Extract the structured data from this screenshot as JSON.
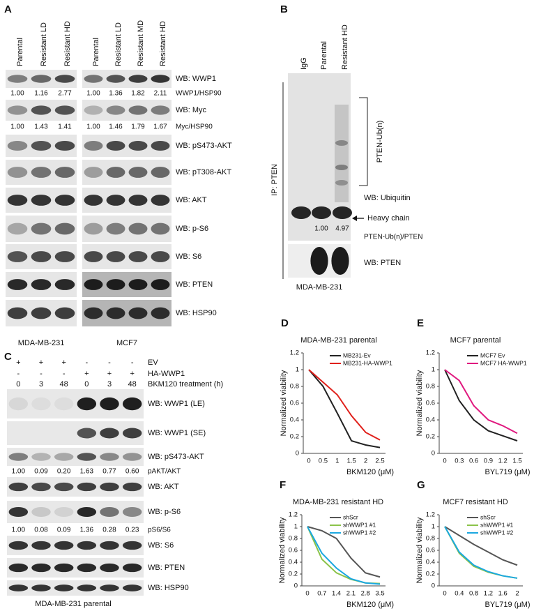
{
  "panel_a": {
    "label": "A",
    "groups": [
      {
        "cell_line": "MDA-MB-231",
        "lanes": [
          "Parental",
          "Resistant LD",
          "Resistant HD"
        ],
        "quant": [
          [
            "1.00",
            "1.16",
            "2.77"
          ],
          [
            "1.00",
            "1.43",
            "1.41"
          ]
        ]
      },
      {
        "cell_line": "MCF7",
        "lanes": [
          "Parental",
          "Resistant LD",
          "Resistant MD",
          "Resistant HD"
        ],
        "quant": [
          [
            "1.00",
            "1.36",
            "1.82",
            "2.11"
          ],
          [
            "1.00",
            "1.46",
            "1.79",
            "1.67"
          ]
        ]
      }
    ],
    "rows": [
      "WB: WWP1",
      "WB: Myc",
      "WB: pS473-AKT",
      "WB: pT308-AKT",
      "WB: AKT",
      "WB: p-S6",
      "WB: S6",
      "WB: PTEN",
      "WB: HSP90"
    ],
    "quant_labels": [
      "WWP1/HSP90",
      "Myc/HSP90"
    ]
  },
  "panel_b": {
    "label": "B",
    "lanes": [
      "IgG",
      "Parental",
      "Resistant HD"
    ],
    "ip": "IP: PTEN",
    "bracket": "PTEN-Ub(n)",
    "rows": [
      "WB: Ubiquitin",
      "WB: PTEN"
    ],
    "arrow": "Heavy chain",
    "quant": [
      "1.00",
      "4.97"
    ],
    "quant_label": "PTEN-Ub(n)/PTEN",
    "cell_line": "MDA-MB-231"
  },
  "panel_c": {
    "label": "C",
    "conditions": [
      {
        "name": "EV",
        "signs": [
          "+",
          "+",
          "+",
          "-",
          "-",
          "-"
        ]
      },
      {
        "name": "HA-WWP1",
        "signs": [
          "-",
          "-",
          "-",
          "+",
          "+",
          "+"
        ]
      }
    ],
    "treatment": "BKM120 treatment (h)",
    "times": [
      0,
      3,
      48,
      0,
      3,
      48
    ],
    "rows": [
      "WB: WWP1 (LE)",
      "WB: WWP1 (SE)",
      "WB: pS473-AKT",
      "WB: AKT",
      "WB: p-S6",
      "WB: S6",
      "WB: PTEN",
      "WB: HSP90"
    ],
    "quant": [
      {
        "label": "pAKT/AKT",
        "values": [
          "1.00",
          "0.09",
          "0.20",
          "1.63",
          "0.77",
          "0.60"
        ]
      },
      {
        "label": "pS6/S6",
        "values": [
          "1.00",
          "0.08",
          "0.09",
          "1.36",
          "0.28",
          "0.23"
        ]
      }
    ],
    "cell_line": "MDA-MB-231 parental"
  },
  "chart_data": [
    {
      "type": "line",
      "label": "D",
      "title": "MDA-MB-231 parental",
      "x_label": "BKM120 (μM)",
      "y_label": "Normalized viability",
      "categories": [
        "0",
        "0.5",
        "1",
        "1.5",
        "2",
        "2.5"
      ],
      "ylim": [
        0,
        1.2
      ],
      "yticks": [
        0,
        0.2,
        0.4,
        0.6,
        0.8,
        1,
        1.2
      ],
      "legend": "upper-right",
      "series": [
        {
          "name": "MB231-Ev",
          "color": "#222222",
          "values": [
            1,
            0.8,
            0.48,
            0.15,
            0.1,
            0.07
          ]
        },
        {
          "name": "MB231-HA-WWP1",
          "color": "#e0201b",
          "values": [
            1,
            0.85,
            0.7,
            0.45,
            0.25,
            0.16
          ]
        }
      ]
    },
    {
      "type": "line",
      "label": "E",
      "title": "MCF7 parental",
      "x_label": "BYL719 (μM)",
      "y_label": "Normalized viability",
      "categories": [
        "0",
        "0.3",
        "0.6",
        "0.9",
        "1.2",
        "1.5"
      ],
      "ylim": [
        0,
        1.2
      ],
      "yticks": [
        0,
        0.2,
        0.4,
        0.6,
        0.8,
        1,
        1.2
      ],
      "legend": "upper-right",
      "series": [
        {
          "name": "MCF7 Ev",
          "color": "#222222",
          "values": [
            1,
            0.63,
            0.4,
            0.27,
            0.21,
            0.15
          ]
        },
        {
          "name": "MCF7 HA-WWP1",
          "color": "#e0197f",
          "values": [
            1,
            0.87,
            0.57,
            0.4,
            0.33,
            0.24
          ]
        }
      ]
    },
    {
      "type": "line",
      "label": "F",
      "title": "MDA-MB-231 resistant HD",
      "x_label": "BKM120 (μM)",
      "y_label": "Normalized viability",
      "categories": [
        "0",
        "0.7",
        "1.4",
        "2.1",
        "2.8",
        "3.5"
      ],
      "ylim": [
        0,
        1.2
      ],
      "yticks": [
        0,
        0.2,
        0.4,
        0.6,
        0.8,
        1,
        1.2
      ],
      "legend": "upper-right",
      "series": [
        {
          "name": "shScr",
          "color": "#555555",
          "values": [
            1,
            0.93,
            0.8,
            0.47,
            0.22,
            0.15
          ]
        },
        {
          "name": "shWWP1 #1",
          "color": "#8bc34a",
          "values": [
            1,
            0.45,
            0.22,
            0.11,
            0.05,
            0.04
          ]
        },
        {
          "name": "shWWP1 #2",
          "color": "#1ba8e0",
          "values": [
            1,
            0.55,
            0.3,
            0.12,
            0.05,
            0.03
          ]
        }
      ]
    },
    {
      "type": "line",
      "label": "G",
      "title": "MCF7 resistant HD",
      "x_label": "BYL719 (μM)",
      "y_label": "Normalized viability",
      "categories": [
        "0",
        "0.4",
        "0.8",
        "1.2",
        "1.6",
        "2"
      ],
      "ylim": [
        0,
        1.2
      ],
      "yticks": [
        0,
        0.2,
        0.4,
        0.6,
        0.8,
        1,
        1.2
      ],
      "legend": "upper-right",
      "series": [
        {
          "name": "shScr",
          "color": "#555555",
          "values": [
            1,
            0.85,
            0.7,
            0.57,
            0.44,
            0.35
          ]
        },
        {
          "name": "shWWP1 #1",
          "color": "#8bc34a",
          "values": [
            1,
            0.55,
            0.33,
            0.23,
            0.17,
            0.13
          ]
        },
        {
          "name": "shWWP1 #2",
          "color": "#1ba8e0",
          "values": [
            1,
            0.57,
            0.35,
            0.24,
            0.17,
            0.13
          ]
        }
      ]
    }
  ]
}
